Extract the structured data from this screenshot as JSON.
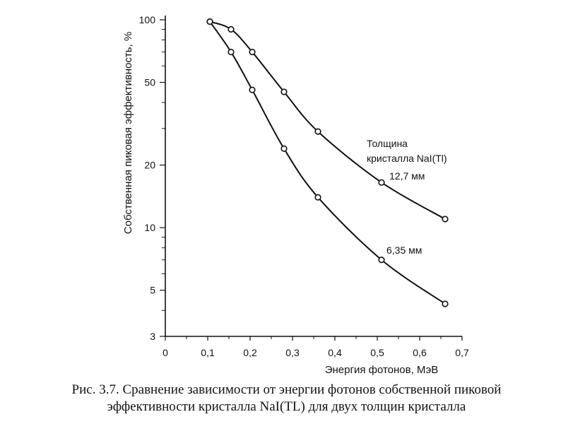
{
  "chart_data": {
    "type": "line",
    "xlabel": "Энергия фотонов, МэВ",
    "ylabel": "Собственная пиковая эффективность, %",
    "x_ticks": [
      "0",
      "0,1",
      "0,2",
      "0,3",
      "0,4",
      "0,5",
      "0,6",
      "0,7"
    ],
    "y_ticks": [
      "3",
      "5",
      "10",
      "20",
      "50",
      "100"
    ],
    "xlim": [
      0,
      0.7
    ],
    "ylim": [
      3,
      100
    ],
    "y_scale": "log",
    "legend_title": [
      "Толщина",
      "кристалла NaI(Tl)"
    ],
    "series": [
      {
        "name": "12,7 мм",
        "x": [
          0.105,
          0.155,
          0.205,
          0.28,
          0.36,
          0.51,
          0.66
        ],
        "y": [
          98,
          90,
          70,
          45,
          29,
          16.5,
          11
        ]
      },
      {
        "name": "6,35 мм",
        "x": [
          0.105,
          0.155,
          0.205,
          0.28,
          0.36,
          0.51,
          0.66
        ],
        "y": [
          98,
          70,
          46,
          24,
          14,
          7,
          4.3
        ]
      }
    ]
  },
  "caption": {
    "line1": "Рис. 3.7.  Сравнение зависимости от энергии фотонов собственной пиковой",
    "line2": "эффективности кристалла NaI(TL) для двух толщин кристалла"
  }
}
